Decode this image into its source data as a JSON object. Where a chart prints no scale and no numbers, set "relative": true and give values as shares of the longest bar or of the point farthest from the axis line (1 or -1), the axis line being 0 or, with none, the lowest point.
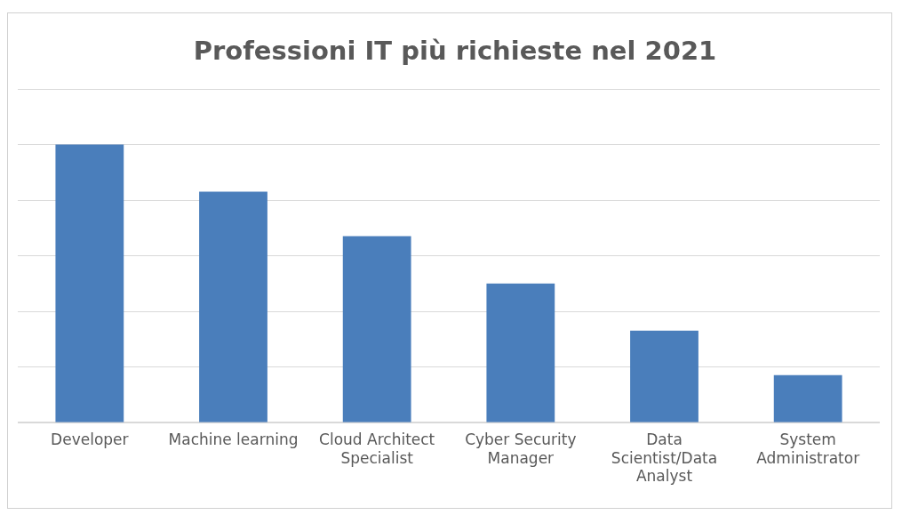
{
  "chart_data": {
    "type": "bar",
    "title": "Professioni IT più richieste nel 2021",
    "categories": [
      "Developer",
      "Machine learning",
      "Cloud Architect Specialist",
      "Cyber Security Manager",
      "Data Scientist/Data Analyst",
      "System Administrator"
    ],
    "values": [
      1,
      0.83,
      0.67,
      0.5,
      0.33,
      0.17
    ],
    "color": "#4a7ebb",
    "relative": true,
    "grid": "y"
  }
}
